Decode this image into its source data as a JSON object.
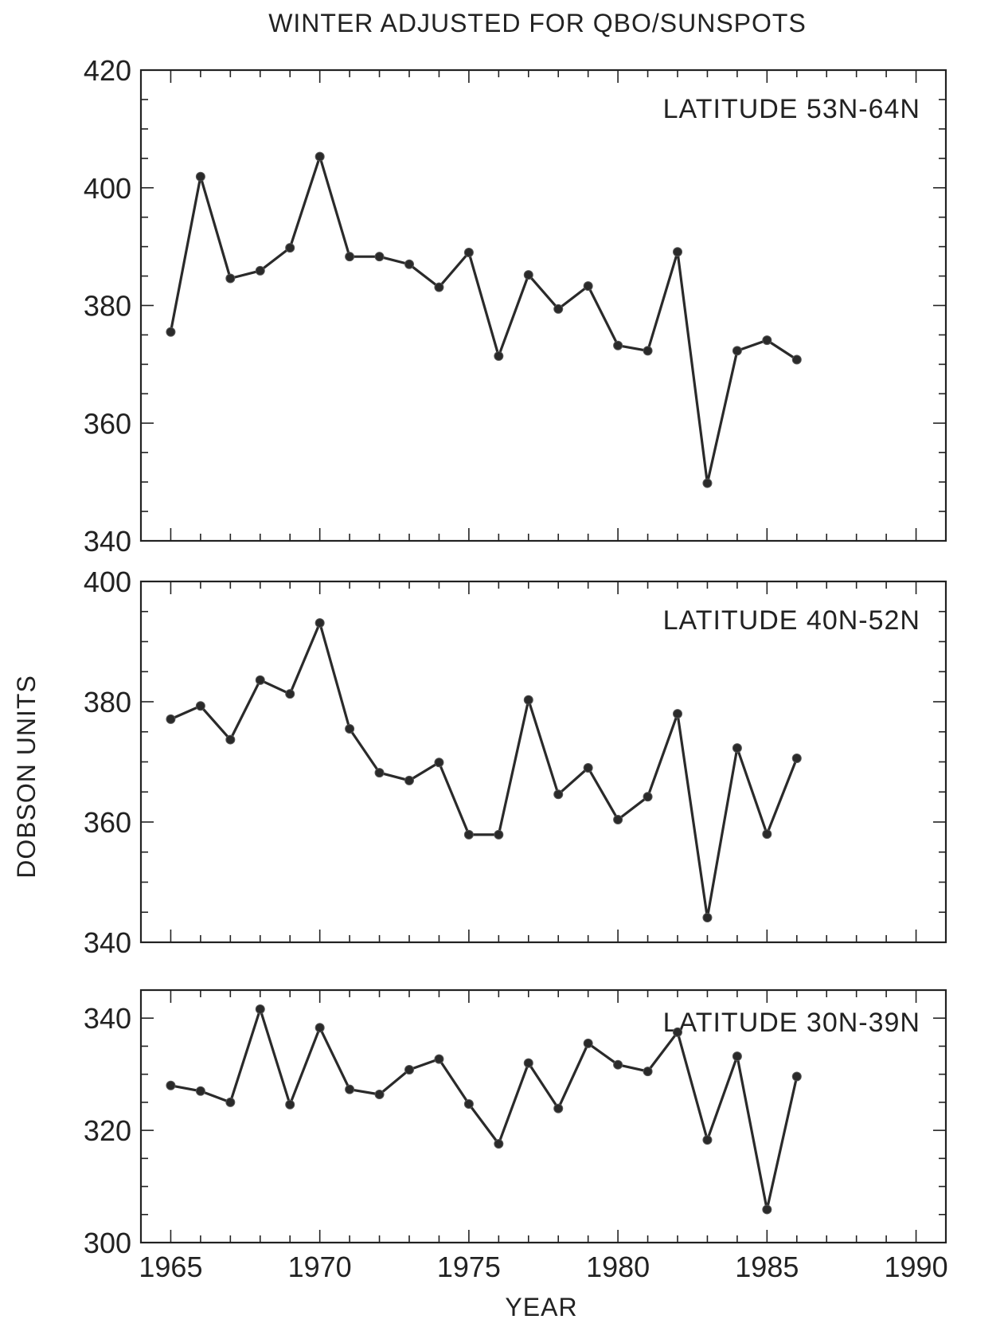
{
  "title": "WINTER ADJUSTED FOR QBO/SUNSPOTS",
  "ylabel": "DOBSON UNITS",
  "xlabel": "YEAR",
  "x_ticks": [
    "1965",
    "1970",
    "1975",
    "1980",
    "1985",
    "1990"
  ],
  "chart_data": [
    {
      "type": "line",
      "label": "LATITUDE 53N-64N",
      "xlim": [
        1964,
        1991
      ],
      "ylim": [
        340,
        420
      ],
      "y_ticks": [
        340,
        360,
        380,
        400,
        420
      ],
      "x": [
        1965,
        1966,
        1967,
        1968,
        1969,
        1970,
        1971,
        1972,
        1973,
        1974,
        1975,
        1976,
        1977,
        1978,
        1979,
        1980,
        1981,
        1982,
        1983,
        1984,
        1985,
        1986
      ],
      "y": [
        375.5,
        401.9,
        384.6,
        385.9,
        389.8,
        405.3,
        388.3,
        388.3,
        387.0,
        383.1,
        389.0,
        371.4,
        385.2,
        379.4,
        383.3,
        373.2,
        372.3,
        389.1,
        349.8,
        372.3,
        374.1,
        370.8
      ]
    },
    {
      "type": "line",
      "label": "LATITUDE 40N-52N",
      "xlim": [
        1964,
        1991
      ],
      "ylim": [
        340,
        400
      ],
      "y_ticks": [
        340,
        360,
        380,
        400
      ],
      "x": [
        1965,
        1966,
        1967,
        1968,
        1969,
        1970,
        1971,
        1972,
        1973,
        1974,
        1975,
        1976,
        1977,
        1978,
        1979,
        1980,
        1981,
        1982,
        1983,
        1984,
        1985,
        1986
      ],
      "y": [
        377.1,
        379.3,
        373.7,
        383.6,
        381.3,
        393.1,
        375.5,
        368.2,
        366.9,
        369.9,
        357.9,
        357.9,
        380.3,
        364.6,
        369.0,
        360.4,
        364.2,
        378.0,
        344.1,
        372.3,
        358.0,
        370.6
      ]
    },
    {
      "type": "line",
      "label": "LATITUDE 30N-39N",
      "xlim": [
        1964,
        1991
      ],
      "ylim": [
        300,
        345
      ],
      "y_ticks": [
        300,
        320,
        340
      ],
      "x": [
        1965,
        1966,
        1967,
        1968,
        1969,
        1970,
        1971,
        1972,
        1973,
        1974,
        1975,
        1976,
        1977,
        1978,
        1979,
        1980,
        1981,
        1982,
        1983,
        1984,
        1985,
        1986
      ],
      "y": [
        328.0,
        327.0,
        325.0,
        341.6,
        324.6,
        338.3,
        327.3,
        326.4,
        330.8,
        332.7,
        324.7,
        317.6,
        332.0,
        323.9,
        335.5,
        331.7,
        330.5,
        337.5,
        318.3,
        333.2,
        305.9,
        329.6
      ]
    }
  ]
}
